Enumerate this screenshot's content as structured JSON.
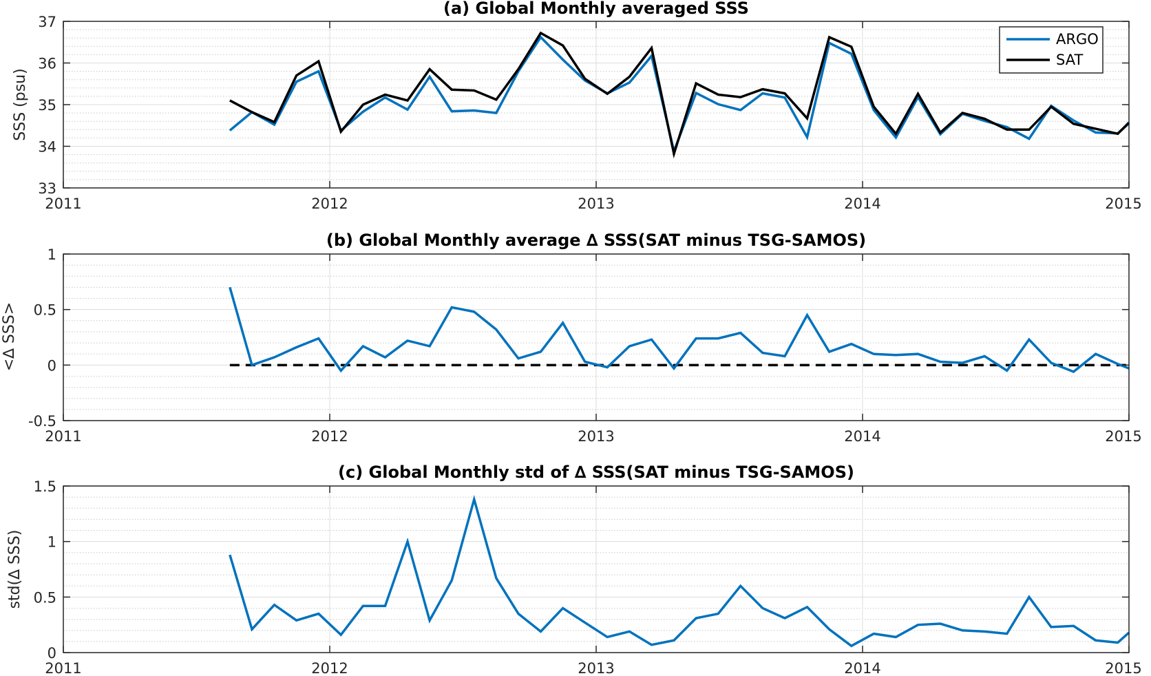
{
  "colors": {
    "argo": "#0072BD",
    "sat": "#000000",
    "zero_line": "#000000",
    "grid_major": "#dcdcdc",
    "grid_minor": "#c8c8c8",
    "axes": "#262626"
  },
  "x_ticks": [
    2011,
    2012,
    2013,
    2014,
    2015
  ],
  "x_tick_labels": [
    "2011",
    "2012",
    "2013",
    "2014",
    "2015"
  ],
  "chart_data": [
    {
      "type": "line",
      "title": "(a) Global Monthly averaged SSS",
      "ylabel": "SSS (psu)",
      "xlim": [
        2011,
        2015
      ],
      "ylim": [
        33,
        37
      ],
      "yticks": [
        33,
        34,
        35,
        36,
        37
      ],
      "ytick_labels": [
        "33",
        "34",
        "35",
        "36",
        "37"
      ],
      "minor_y_step": 0.2,
      "grid": true,
      "legend": {
        "placement": "top-right",
        "entries": [
          "ARGO",
          "SAT"
        ]
      },
      "x": [
        2011.625,
        2011.708,
        2011.792,
        2011.875,
        2011.958,
        2012.042,
        2012.125,
        2012.208,
        2012.292,
        2012.375,
        2012.458,
        2012.542,
        2012.625,
        2012.708,
        2012.792,
        2012.875,
        2012.958,
        2013.042,
        2013.125,
        2013.208,
        2013.292,
        2013.375,
        2013.458,
        2013.542,
        2013.625,
        2013.708,
        2013.792,
        2013.875,
        2013.958,
        2014.042,
        2014.125,
        2014.208,
        2014.292,
        2014.375,
        2014.458,
        2014.542,
        2014.625,
        2014.708,
        2014.792,
        2014.875,
        2014.958,
        2015.0
      ],
      "series": [
        {
          "name": "ARGO",
          "color": "#0072BD",
          "values": [
            34.38,
            34.82,
            34.52,
            35.55,
            35.8,
            34.38,
            34.83,
            35.17,
            34.88,
            35.67,
            34.84,
            34.86,
            34.8,
            35.8,
            36.62,
            36.08,
            35.58,
            35.27,
            35.53,
            36.17,
            33.88,
            35.28,
            35.01,
            34.87,
            35.27,
            35.17,
            34.22,
            36.48,
            36.22,
            34.87,
            34.21,
            35.18,
            34.29,
            34.78,
            34.61,
            34.46,
            34.18,
            34.97,
            34.62,
            34.33,
            34.31,
            34.55
          ]
        },
        {
          "name": "SAT",
          "color": "#000000",
          "values": [
            35.1,
            34.82,
            34.58,
            35.7,
            36.04,
            34.35,
            35.0,
            35.24,
            35.1,
            35.85,
            35.36,
            35.34,
            35.12,
            35.85,
            36.72,
            36.42,
            35.62,
            35.26,
            35.67,
            36.36,
            33.82,
            35.51,
            35.24,
            35.18,
            35.37,
            35.27,
            34.67,
            36.62,
            36.39,
            34.95,
            34.3,
            35.26,
            34.33,
            34.8,
            34.66,
            34.4,
            34.4,
            34.95,
            34.54,
            34.42,
            34.3,
            34.57
          ]
        }
      ]
    },
    {
      "type": "line",
      "title": "(b) Global Monthly average ∆ SSS(SAT minus TSG-SAMOS)",
      "ylabel": "<∆ SSS>",
      "xlim": [
        2011,
        2015
      ],
      "ylim": [
        -0.5,
        1
      ],
      "yticks": [
        -0.5,
        0,
        0.5,
        1
      ],
      "ytick_labels": [
        "-0.5",
        "0",
        "0.5",
        "1"
      ],
      "minor_y_step": 0.1,
      "grid": true,
      "reference_line": {
        "y": 0,
        "x_from": 2011.625,
        "x_to": 2015.0,
        "style": "dashed"
      },
      "x": [
        2011.625,
        2011.708,
        2011.792,
        2011.875,
        2011.958,
        2012.042,
        2012.125,
        2012.208,
        2012.292,
        2012.375,
        2012.458,
        2012.542,
        2012.625,
        2012.708,
        2012.792,
        2012.875,
        2012.958,
        2013.042,
        2013.125,
        2013.208,
        2013.292,
        2013.375,
        2013.458,
        2013.542,
        2013.625,
        2013.708,
        2013.792,
        2013.875,
        2013.958,
        2014.042,
        2014.125,
        2014.208,
        2014.292,
        2014.375,
        2014.458,
        2014.542,
        2014.625,
        2014.708,
        2014.792,
        2014.875,
        2014.958,
        2015.0
      ],
      "series": [
        {
          "color": "#0072BD",
          "values": [
            0.7,
            0.0,
            0.07,
            0.16,
            0.24,
            -0.05,
            0.17,
            0.07,
            0.22,
            0.17,
            0.52,
            0.48,
            0.32,
            0.06,
            0.12,
            0.38,
            0.03,
            -0.02,
            0.17,
            0.23,
            -0.03,
            0.24,
            0.24,
            0.29,
            0.11,
            0.08,
            0.45,
            0.12,
            0.19,
            0.1,
            0.09,
            0.1,
            0.03,
            0.02,
            0.08,
            -0.05,
            0.23,
            0.02,
            -0.06,
            0.1,
            0.01,
            -0.03
          ]
        }
      ]
    },
    {
      "type": "line",
      "title": "(c) Global Monthly std of ∆ SSS(SAT minus TSG-SAMOS)",
      "ylabel": "std(∆ SSS)",
      "xlim": [
        2011,
        2015
      ],
      "ylim": [
        0,
        1.5
      ],
      "yticks": [
        0,
        0.5,
        1,
        1.5
      ],
      "ytick_labels": [
        "0",
        "0.5",
        "1",
        "1.5"
      ],
      "minor_y_step": 0.1,
      "grid": true,
      "x": [
        2011.625,
        2011.708,
        2011.792,
        2011.875,
        2011.958,
        2012.042,
        2012.125,
        2012.208,
        2012.292,
        2012.375,
        2012.458,
        2012.542,
        2012.625,
        2012.708,
        2012.792,
        2012.875,
        2012.958,
        2013.042,
        2013.125,
        2013.208,
        2013.292,
        2013.375,
        2013.458,
        2013.542,
        2013.625,
        2013.708,
        2013.792,
        2013.875,
        2013.958,
        2014.042,
        2014.125,
        2014.208,
        2014.292,
        2014.375,
        2014.458,
        2014.542,
        2014.625,
        2014.708,
        2014.792,
        2014.875,
        2014.958,
        2015.0
      ],
      "series": [
        {
          "color": "#0072BD",
          "values": [
            0.88,
            0.21,
            0.43,
            0.29,
            0.35,
            0.16,
            0.42,
            0.42,
            1.0,
            0.29,
            0.65,
            1.38,
            0.67,
            0.35,
            0.19,
            0.4,
            0.27,
            0.14,
            0.19,
            0.07,
            0.11,
            0.31,
            0.35,
            0.6,
            0.4,
            0.31,
            0.41,
            0.21,
            0.06,
            0.17,
            0.14,
            0.25,
            0.26,
            0.2,
            0.19,
            0.17,
            0.5,
            0.23,
            0.24,
            0.11,
            0.09,
            0.18
          ]
        }
      ]
    }
  ]
}
